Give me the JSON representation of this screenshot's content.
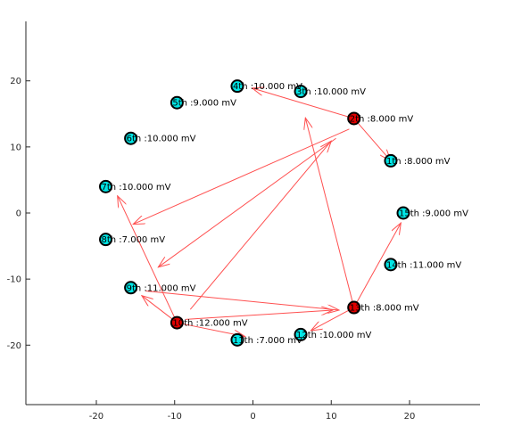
{
  "chart_data": {
    "type": "scatter",
    "title": "",
    "xlabel": "",
    "ylabel": "",
    "xlim": [
      -29,
      29
    ],
    "ylim": [
      -29,
      29
    ],
    "x_ticks": [
      -20,
      -10,
      0,
      10,
      20
    ],
    "y_ticks": [
      -20,
      -10,
      0,
      10,
      20
    ],
    "grid": false,
    "colors": {
      "normal_node": "#00e5e5",
      "active_node": "#e00000",
      "node_stroke": "#000000",
      "arrow": "#ff5050",
      "axis": "#262626"
    },
    "nodes": [
      {
        "id": "1",
        "x": 17.6,
        "y": 7.9,
        "state": "normal",
        "label": "1th :8.000 mV"
      },
      {
        "id": "2",
        "x": 12.9,
        "y": 14.3,
        "state": "active",
        "label": "2th :8.000 mV"
      },
      {
        "id": "3",
        "x": 6.1,
        "y": 18.4,
        "state": "normal",
        "label": "3th :10.000 mV"
      },
      {
        "id": "4",
        "x": -2.0,
        "y": 19.2,
        "state": "normal",
        "label": "4th :10.000 mV"
      },
      {
        "id": "5",
        "x": -9.7,
        "y": 16.7,
        "state": "normal",
        "label": "5th :9.000 mV"
      },
      {
        "id": "6",
        "x": -15.6,
        "y": 11.3,
        "state": "normal",
        "label": "6th :10.000 mV"
      },
      {
        "id": "7",
        "x": -18.8,
        "y": 4.0,
        "state": "normal",
        "label": "7th :10.000 mV"
      },
      {
        "id": "8",
        "x": -18.8,
        "y": -4.0,
        "state": "normal",
        "label": "8th :7.000 mV"
      },
      {
        "id": "9",
        "x": -15.6,
        "y": -11.3,
        "state": "normal",
        "label": "9th :11.000 mV"
      },
      {
        "id": "10",
        "x": -9.7,
        "y": -16.6,
        "state": "active",
        "label": "10th :12.000 mV"
      },
      {
        "id": "11",
        "x": -2.0,
        "y": -19.2,
        "state": "normal",
        "label": "11th :7.000 mV"
      },
      {
        "id": "12",
        "x": 6.1,
        "y": -18.4,
        "state": "normal",
        "label": "12th :10.000 mV"
      },
      {
        "id": "13",
        "x": 12.9,
        "y": -14.3,
        "state": "active",
        "label": "13th :8.000 mV"
      },
      {
        "id": "14",
        "x": 17.6,
        "y": -7.8,
        "state": "normal",
        "label": "14th :11.000 mV"
      },
      {
        "id": "15",
        "x": 19.2,
        "y": 0.0,
        "state": "normal",
        "label": "15th :9.000 mV"
      }
    ],
    "arrows": [
      {
        "x1": 12.9,
        "y1": 14.3,
        "x2": 17.6,
        "y2": 7.9
      },
      {
        "x1": 12.9,
        "y1": 14.3,
        "x2": -0.1,
        "y2": 18.9
      },
      {
        "x1": 12.3,
        "y1": 12.7,
        "x2": -15.3,
        "y2": -1.7
      },
      {
        "x1": 10.6,
        "y1": 11.3,
        "x2": -12.1,
        "y2": -8.2
      },
      {
        "x1": -8.0,
        "y1": -14.6,
        "x2": 10.0,
        "y2": 10.9
      },
      {
        "x1": -9.7,
        "y1": -16.6,
        "x2": -17.3,
        "y2": 2.6
      },
      {
        "x1": -9.7,
        "y1": -16.6,
        "x2": -14.2,
        "y2": -12.5
      },
      {
        "x1": -9.7,
        "y1": -16.6,
        "x2": -1.0,
        "y2": -18.7
      },
      {
        "x1": -8.6,
        "y1": -16.1,
        "x2": 10.2,
        "y2": -14.7
      },
      {
        "x1": -13.7,
        "y1": -11.8,
        "x2": 11.0,
        "y2": -14.7
      },
      {
        "x1": 12.9,
        "y1": -14.3,
        "x2": 6.7,
        "y2": 14.4
      },
      {
        "x1": 12.9,
        "y1": -14.3,
        "x2": 18.9,
        "y2": -1.5
      },
      {
        "x1": 12.9,
        "y1": -14.3,
        "x2": 7.4,
        "y2": -17.8
      }
    ]
  }
}
